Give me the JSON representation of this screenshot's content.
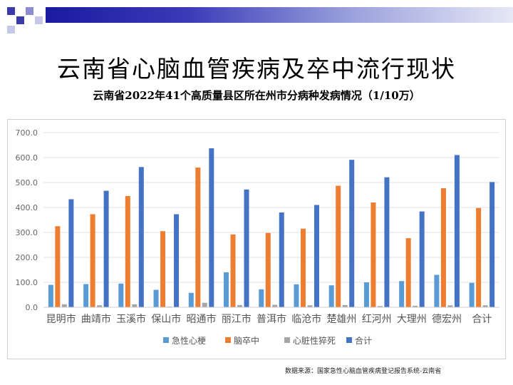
{
  "slide": {
    "title": "云南省心脑血管疾病及卒中流行现状",
    "subtitle": "云南省2022年41个高质量县区所在州市分病种发病情况（1/10万）",
    "source": "数据来源：国家急性心脑血管疾病登记报告系统-云南省"
  },
  "colors": {
    "header_band": "#1a1aa0",
    "deco_squares": "#3a3aa8"
  },
  "chart_data": {
    "type": "bar",
    "title": "",
    "xlabel": "",
    "ylabel": "",
    "ylim": [
      0,
      700
    ],
    "yticks": [
      "0.0",
      "100.0",
      "200.0",
      "300.0",
      "400.0",
      "500.0",
      "600.0",
      "700.0"
    ],
    "grid": true,
    "legend_position": "bottom",
    "categories": [
      "昆明市",
      "曲靖市",
      "玉溪市",
      "保山市",
      "昭通市",
      "丽江市",
      "普洱市",
      "临沧市",
      "楚雄州",
      "红河州",
      "大理州",
      "德宏州",
      "合计"
    ],
    "series": [
      {
        "name": "急性心梗",
        "color": "#5b9bd5",
        "values": [
          90,
          93,
          95,
          70,
          58,
          140,
          72,
          92,
          88,
          100,
          105,
          130,
          98
        ]
      },
      {
        "name": "脑卒中",
        "color": "#ed7d31",
        "values": [
          325,
          373,
          446,
          305,
          560,
          292,
          298,
          315,
          487,
          420,
          277,
          477,
          398
        ]
      },
      {
        "name": "心脏性猝死",
        "color": "#a5a5a5",
        "values": [
          12,
          8,
          12,
          3,
          18,
          9,
          10,
          8,
          9,
          5,
          6,
          8,
          8
        ]
      },
      {
        "name": "合计",
        "color": "#4472c4",
        "values": [
          433,
          467,
          562,
          373,
          637,
          472,
          380,
          410,
          591,
          521,
          384,
          610,
          502
        ]
      }
    ]
  }
}
